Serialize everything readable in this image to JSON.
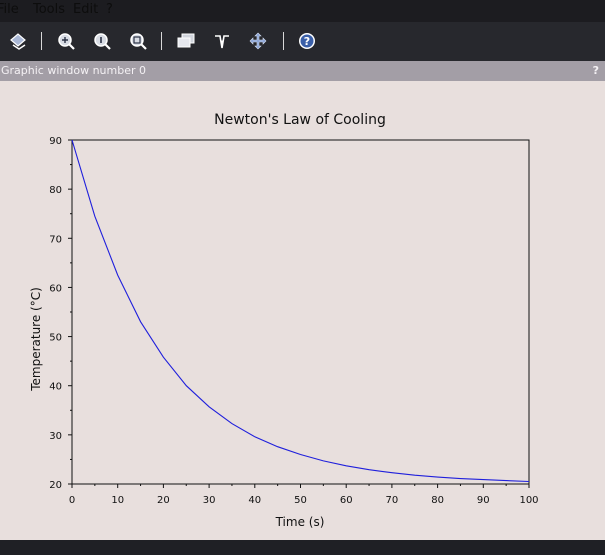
{
  "menu": {
    "file": "File",
    "tools": "Tools",
    "edit": "Edit",
    "help": "?"
  },
  "window": {
    "title": "Graphic window number 0",
    "help": "?"
  },
  "toolbar": [
    "rotate-icon",
    "zoom-in-icon",
    "zoom-reset-icon",
    "zoom-out-icon",
    "datatip-icon",
    "edit-curve-icon",
    "pan-icon",
    "help-icon"
  ],
  "chart_data": {
    "type": "line",
    "title": "Newton's Law of Cooling",
    "xlabel": "Time (s)",
    "ylabel": "Temperature (°C)",
    "xlim": [
      0,
      100
    ],
    "ylim": [
      20,
      90
    ],
    "xticks": [
      0,
      10,
      20,
      30,
      40,
      50,
      60,
      70,
      80,
      90,
      100
    ],
    "yticks": [
      20,
      30,
      40,
      50,
      60,
      70,
      80,
      90
    ],
    "series": [
      {
        "color": "#1f1fdc",
        "x": [
          0,
          5,
          10,
          15,
          20,
          25,
          30,
          35,
          40,
          45,
          50,
          55,
          60,
          65,
          70,
          75,
          80,
          85,
          90,
          95,
          100
        ],
        "y": [
          90,
          74.5,
          62.5,
          53.0,
          45.8,
          40.0,
          35.7,
          32.3,
          29.6,
          27.6,
          26.0,
          24.7,
          23.7,
          22.9,
          22.3,
          21.8,
          21.4,
          21.1,
          20.9,
          20.7,
          20.5
        ]
      }
    ]
  }
}
